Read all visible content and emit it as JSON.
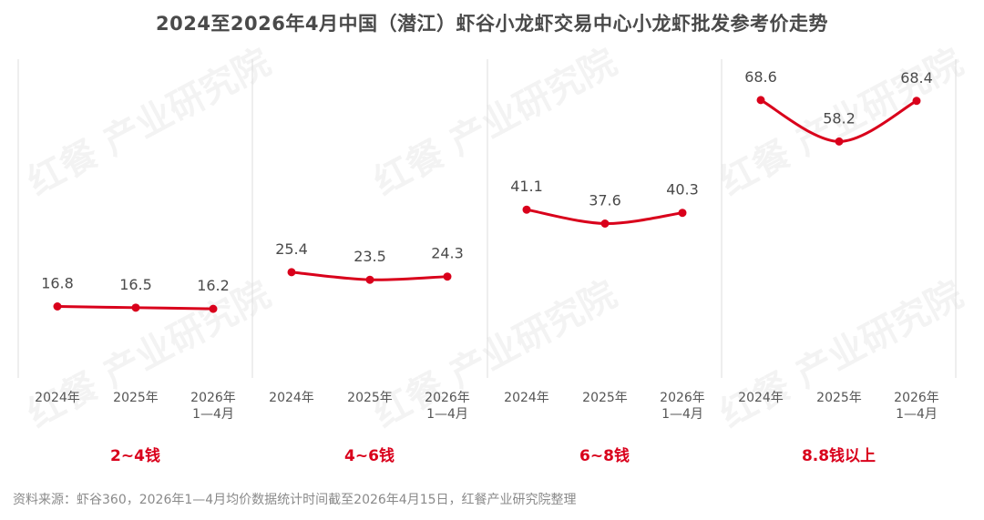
{
  "title": "2024至2026年4月中国（潜江）虾谷小龙虾交易中心小龙虾批发参考价走势",
  "source": "资料来源：虾谷360，2026年1—4月均价数据统计时间截至2026年4月15日，红餐产业研究院整理",
  "watermark": "红餐 产业研究院",
  "colors": {
    "line": "#d9001b",
    "text": "#4a4a4a",
    "group_label": "#d9001b",
    "divider": "#dddddd"
  },
  "chart_data": {
    "type": "line",
    "title": "2024至2026年4月中国（潜江）虾谷小龙虾交易中心小龙虾批发参考价走势",
    "categories": [
      "2024年",
      "2025年",
      "2026年 1—4月"
    ],
    "panels": [
      {
        "group": "2~4钱",
        "values": [
          16.8,
          16.5,
          16.2
        ],
        "labels": [
          "16.8",
          "16.5",
          "16.2"
        ]
      },
      {
        "group": "4~6钱",
        "values": [
          25.4,
          23.5,
          24.3
        ],
        "labels": [
          "25.4",
          "23.5",
          "24.3"
        ]
      },
      {
        "group": "6~8钱",
        "values": [
          41.1,
          37.6,
          40.3
        ],
        "labels": [
          "41.1",
          "37.6",
          "40.3"
        ]
      },
      {
        "group": "8.8钱以上",
        "values": [
          68.6,
          58.2,
          68.4
        ],
        "labels": [
          "68.6",
          "58.2",
          "68.4"
        ]
      }
    ],
    "x_ticks": [
      [
        "2024年"
      ],
      [
        "2025年"
      ],
      [
        "2026年",
        "1—4月"
      ]
    ],
    "ylim": [
      0,
      80
    ],
    "grid": false,
    "legend": "none"
  }
}
